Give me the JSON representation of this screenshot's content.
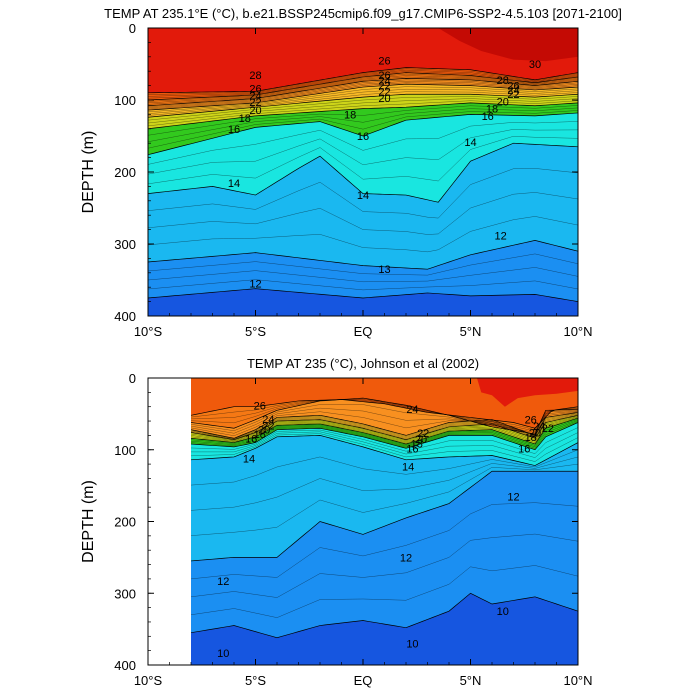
{
  "chart_data": [
    {
      "type": "heatmap",
      "title": "TEMP AT 235.1°E (°C), b.e21.BSSP245cmip6.f09_g17.CMIP6-SSP2-4.5.103 [2071-2100]",
      "xlabel": "",
      "ylabel": "DEPTH (m)",
      "xlim": [
        -10,
        10
      ],
      "ylim": [
        0,
        400
      ],
      "y_reversed": true,
      "x_ticks": [
        "10°S",
        "5°S",
        "EQ",
        "5°N",
        "10°N"
      ],
      "y_ticks": [
        "0",
        "100",
        "200",
        "300",
        "400"
      ],
      "data_x_start": -10,
      "levels": [
        10,
        12,
        14,
        16,
        18,
        20,
        22,
        24,
        26,
        28,
        30
      ],
      "isotherms": [
        {
          "level": 28,
          "x": [
            -10,
            -5,
            0,
            2,
            5,
            8,
            10
          ],
          "depth": [
            90,
            88,
            62,
            55,
            58,
            72,
            62
          ]
        },
        {
          "level": 26,
          "x": [
            -10,
            -5,
            0,
            2,
            5,
            8,
            10
          ],
          "depth": [
            100,
            93,
            68,
            62,
            66,
            76,
            68
          ]
        },
        {
          "level": 24,
          "x": [
            -10,
            -5,
            0,
            2,
            5,
            8,
            10
          ],
          "depth": [
            108,
            98,
            74,
            70,
            72,
            80,
            74
          ]
        },
        {
          "level": 22,
          "x": [
            -10,
            -5,
            0,
            2,
            5,
            8,
            10
          ],
          "depth": [
            114,
            104,
            82,
            78,
            80,
            86,
            82
          ]
        },
        {
          "level": 20,
          "x": [
            -10,
            -5,
            0,
            2,
            5,
            8,
            10
          ],
          "depth": [
            124,
            110,
            96,
            92,
            92,
            96,
            92
          ]
        },
        {
          "level": 18,
          "x": [
            -10,
            -5,
            0,
            2,
            5,
            8,
            10
          ],
          "depth": [
            140,
            122,
            112,
            110,
            104,
            108,
            104
          ]
        },
        {
          "level": 16,
          "x": [
            -10,
            -5,
            -2,
            0,
            2,
            5,
            8,
            10
          ],
          "depth": [
            176,
            138,
            130,
            150,
            128,
            120,
            122,
            118
          ]
        },
        {
          "level": 14,
          "x": [
            -10,
            -7,
            -5,
            -3,
            -2,
            0,
            2,
            3.5,
            5,
            7,
            10
          ],
          "depth": [
            230,
            220,
            232,
            195,
            178,
            230,
            232,
            242,
            185,
            160,
            165
          ]
        },
        {
          "level": 12,
          "x": [
            -10,
            -5,
            0,
            3,
            5,
            8,
            10
          ],
          "depth": [
            325,
            312,
            330,
            335,
            315,
            295,
            310
          ]
        },
        {
          "level": 10,
          "x": [
            -10,
            -5,
            0,
            3,
            5,
            8,
            10
          ],
          "depth": [
            375,
            362,
            375,
            368,
            372,
            370,
            380
          ]
        }
      ],
      "contour_labels": [
        {
          "text": "28",
          "x": -5,
          "depth": 65
        },
        {
          "text": "26",
          "x": -5,
          "depth": 84
        },
        {
          "text": "24",
          "x": -5,
          "depth": 94
        },
        {
          "text": "22",
          "x": -5,
          "depth": 103
        },
        {
          "text": "20",
          "x": -5,
          "depth": 114
        },
        {
          "text": "18",
          "x": -5.5,
          "depth": 125
        },
        {
          "text": "16",
          "x": -6,
          "depth": 140
        },
        {
          "text": "14",
          "x": -6,
          "depth": 215
        },
        {
          "text": "12",
          "x": -5,
          "depth": 355
        },
        {
          "text": "26",
          "x": 1,
          "depth": 45
        },
        {
          "text": "26",
          "x": 1,
          "depth": 65
        },
        {
          "text": "24",
          "x": 1,
          "depth": 73
        },
        {
          "text": "22",
          "x": 1,
          "depth": 80
        },
        {
          "text": "22",
          "x": 1,
          "depth": 88
        },
        {
          "text": "20",
          "x": 1,
          "depth": 97
        },
        {
          "text": "18",
          "x": -0.6,
          "depth": 120
        },
        {
          "text": "16",
          "x": 0,
          "depth": 150
        },
        {
          "text": "14",
          "x": 0,
          "depth": 232
        },
        {
          "text": "13",
          "x": 1,
          "depth": 335
        },
        {
          "text": "14",
          "x": 5,
          "depth": 158
        },
        {
          "text": "12",
          "x": 6.4,
          "depth": 288
        },
        {
          "text": "30",
          "x": 8,
          "depth": 50
        },
        {
          "text": "28",
          "x": 6.5,
          "depth": 72
        },
        {
          "text": "26",
          "x": 7,
          "depth": 80
        },
        {
          "text": "24",
          "x": 7,
          "depth": 86
        },
        {
          "text": "22",
          "x": 7,
          "depth": 92
        },
        {
          "text": "20",
          "x": 6.5,
          "depth": 102
        },
        {
          "text": "18",
          "x": 6,
          "depth": 112
        },
        {
          "text": "16",
          "x": 5.8,
          "depth": 122
        }
      ]
    },
    {
      "type": "heatmap",
      "title": "TEMP AT 235 (°C), Johnson et al (2002)",
      "xlabel": "",
      "ylabel": "DEPTH (m)",
      "xlim": [
        -10,
        10
      ],
      "ylim": [
        0,
        400
      ],
      "y_reversed": true,
      "x_ticks": [
        "10°S",
        "5°S",
        "EQ",
        "5°N",
        "10°N"
      ],
      "y_ticks": [
        "0",
        "100",
        "200",
        "300",
        "400"
      ],
      "data_x_start": -8,
      "levels": [
        10,
        12,
        14,
        16,
        18,
        20,
        22,
        24,
        26,
        28,
        30
      ],
      "isotherms": [
        {
          "level": 26,
          "x": [
            -8,
            -6,
            -5,
            -3,
            -1,
            1,
            3,
            5,
            7,
            8,
            8.8,
            10
          ],
          "depth": [
            52,
            40,
            40,
            32,
            30,
            36,
            48,
            55,
            62,
            70,
            45,
            40
          ]
        },
        {
          "level": 24,
          "x": [
            -8,
            -6,
            -5,
            -4,
            -2,
            0,
            2,
            4,
            6,
            8,
            8.5,
            10
          ],
          "depth": [
            62,
            70,
            58,
            45,
            32,
            28,
            38,
            52,
            68,
            78,
            45,
            44
          ]
        },
        {
          "level": 22,
          "x": [
            -8,
            -6,
            -5,
            -4,
            -2,
            0,
            2,
            4,
            6,
            8,
            8.5,
            10
          ],
          "depth": [
            72,
            84,
            72,
            55,
            52,
            64,
            80,
            62,
            58,
            80,
            55,
            48
          ]
        },
        {
          "level": 20,
          "x": [
            -8,
            -6,
            -5,
            -4,
            -2,
            0,
            2,
            4,
            6,
            8,
            8.5,
            10
          ],
          "depth": [
            76,
            86,
            76,
            60,
            58,
            70,
            86,
            68,
            64,
            84,
            62,
            52
          ]
        },
        {
          "level": 18,
          "x": [
            -8,
            -6,
            -5,
            -4,
            -2,
            0,
            2,
            4,
            6,
            8,
            8.5,
            10
          ],
          "depth": [
            84,
            90,
            82,
            66,
            64,
            76,
            92,
            74,
            72,
            92,
            70,
            56
          ]
        },
        {
          "level": 16,
          "x": [
            -8,
            -6,
            -5,
            -4,
            -2,
            0,
            2,
            4,
            6,
            8,
            8.5,
            10
          ],
          "depth": [
            92,
            96,
            90,
            72,
            70,
            82,
            98,
            80,
            80,
            100,
            82,
            62
          ]
        },
        {
          "level": 14,
          "x": [
            -8,
            -6,
            -5,
            -4,
            -2,
            0,
            2,
            4,
            6,
            8,
            10
          ],
          "depth": [
            114,
            110,
            98,
            82,
            80,
            96,
            114,
            110,
            108,
            122,
            90
          ]
        },
        {
          "level": 12,
          "x": [
            -8,
            -6,
            -4,
            -2,
            0,
            2,
            4,
            6,
            8,
            10
          ],
          "depth": [
            255,
            250,
            250,
            200,
            218,
            195,
            175,
            130,
            130,
            130
          ]
        },
        {
          "level": 10,
          "x": [
            -8,
            -6,
            -4,
            -2,
            0,
            2,
            4,
            5,
            6,
            8,
            10
          ],
          "depth": [
            355,
            345,
            362,
            345,
            338,
            348,
            325,
            300,
            315,
            305,
            325
          ]
        }
      ],
      "contour_labels": [
        {
          "text": "26",
          "x": -4.8,
          "depth": 38
        },
        {
          "text": "24",
          "x": -4.4,
          "depth": 57
        },
        {
          "text": "22",
          "x": -4.4,
          "depth": 66
        },
        {
          "text": "20",
          "x": -4.6,
          "depth": 72
        },
        {
          "text": "18",
          "x": -4.8,
          "depth": 78
        },
        {
          "text": "16",
          "x": -5.2,
          "depth": 84
        },
        {
          "text": "14",
          "x": -5.3,
          "depth": 112
        },
        {
          "text": "12",
          "x": -6.5,
          "depth": 283
        },
        {
          "text": "10",
          "x": -6.5,
          "depth": 383
        },
        {
          "text": "24",
          "x": 2.3,
          "depth": 43
        },
        {
          "text": "22",
          "x": 2.8,
          "depth": 77
        },
        {
          "text": "20",
          "x": 2.7,
          "depth": 85
        },
        {
          "text": "18",
          "x": 2.5,
          "depth": 91
        },
        {
          "text": "16",
          "x": 2.3,
          "depth": 98
        },
        {
          "text": "14",
          "x": 2.1,
          "depth": 123
        },
        {
          "text": "12",
          "x": 2,
          "depth": 250
        },
        {
          "text": "10",
          "x": 2.3,
          "depth": 370
        },
        {
          "text": "26",
          "x": 7.8,
          "depth": 58
        },
        {
          "text": "24",
          "x": 8.2,
          "depth": 67
        },
        {
          "text": "22",
          "x": 8.6,
          "depth": 70
        },
        {
          "text": "20",
          "x": 8,
          "depth": 76
        },
        {
          "text": "18",
          "x": 7.8,
          "depth": 82
        },
        {
          "text": "16",
          "x": 7.5,
          "depth": 98
        },
        {
          "text": "12",
          "x": 7,
          "depth": 165
        },
        {
          "text": "10",
          "x": 6.5,
          "depth": 325
        }
      ]
    }
  ],
  "colors": {
    "30": "#c40a04",
    "28": "#e21a0b",
    "26": "#f05a0c",
    "24": "#f57814",
    "22": "#f89020",
    "20": "#f7b825",
    "18": "#cdd419",
    "16": "#32c91e",
    "14": "#19e6e0",
    "12": "#1ab8f0",
    "10": "#1b8ff2",
    "8": "#1656e0",
    "deep": "#26e9f2",
    "mid": "#1f9ef2"
  }
}
